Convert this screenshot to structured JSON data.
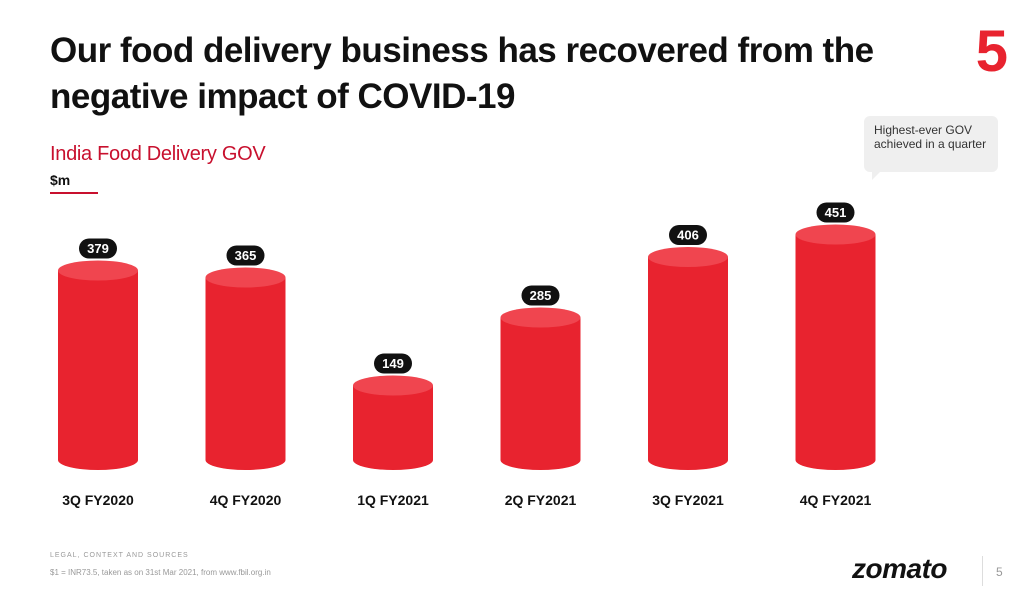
{
  "slide": {
    "title": "Our food delivery business has recovered from the negative impact of COVID-19",
    "page_badge": "5",
    "callout": "Highest-ever GOV achieved in a quarter",
    "footer_heading": "LEGAL, CONTEXT AND SOURCES",
    "footer_note": "$1 = INR73.5, taken as on 31st Mar 2021, from www.fbil.org.in",
    "brand": "zomato",
    "page_number": "5"
  },
  "colors": {
    "bar": "#e8232f",
    "bar_top": "#f0454f",
    "label_bg": "#111111",
    "accent": "#c8102e"
  },
  "chart_data": {
    "type": "bar",
    "title": "India Food Delivery GOV",
    "ylabel": "$m",
    "xlabel": "",
    "categories": [
      "3Q FY2020",
      "4Q FY2020",
      "1Q FY2021",
      "2Q FY2021",
      "3Q FY2021",
      "4Q FY2021"
    ],
    "values": [
      379,
      365,
      149,
      285,
      406,
      451
    ],
    "ylim": [
      0,
      500
    ],
    "grid": false,
    "legend": "none"
  }
}
